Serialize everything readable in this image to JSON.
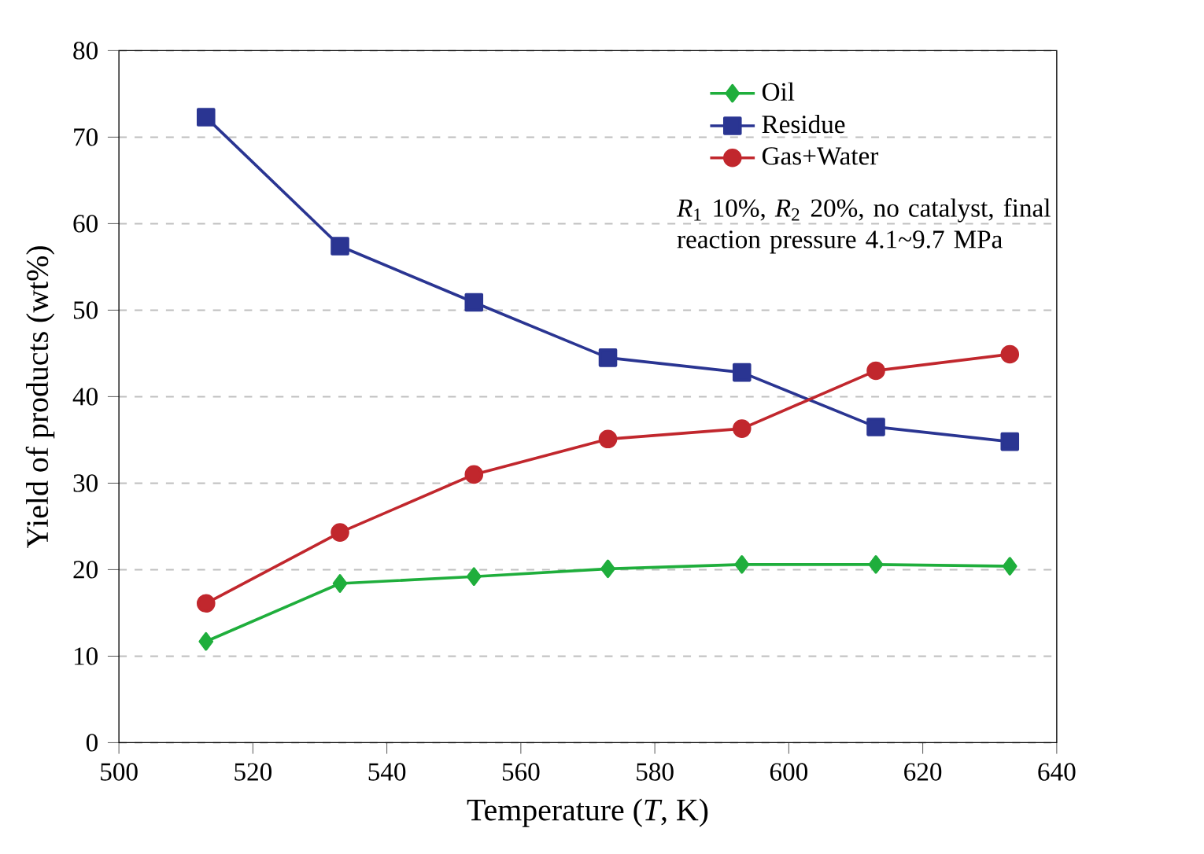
{
  "chart_data": {
    "type": "line",
    "xlabel": "Temperature (*T*, K)",
    "ylabel": "Yield of products (wt%)",
    "x": [
      513,
      533,
      553,
      573,
      593,
      613,
      633
    ],
    "series": [
      {
        "name": "Oil",
        "color": "#1fae3c",
        "marker": "diamond",
        "values": [
          11.7,
          18.4,
          19.2,
          20.1,
          20.6,
          20.6,
          20.4
        ]
      },
      {
        "name": "Residue",
        "color": "#2a3592",
        "marker": "square",
        "values": [
          72.3,
          57.4,
          50.9,
          44.5,
          42.8,
          36.5,
          34.8
        ]
      },
      {
        "name": "Gas+Water",
        "color": "#c1272d",
        "marker": "circle",
        "values": [
          16.1,
          24.3,
          31.0,
          35.1,
          36.3,
          43.0,
          44.9
        ]
      }
    ],
    "xlim": [
      500,
      640
    ],
    "xticks": [
      500,
      520,
      540,
      560,
      580,
      600,
      620,
      640
    ],
    "ylim": [
      0,
      80
    ],
    "yticks": [
      0,
      10,
      20,
      30,
      40,
      50,
      60,
      70,
      80
    ],
    "grid": "y",
    "legend": "top right",
    "line_style": "solid",
    "annotations": [
      "*R*$_{1}$ 10%, *R*$_{2}$ 20%, no catalyst, final reaction pressure 4.1~9.7 MPa"
    ]
  }
}
